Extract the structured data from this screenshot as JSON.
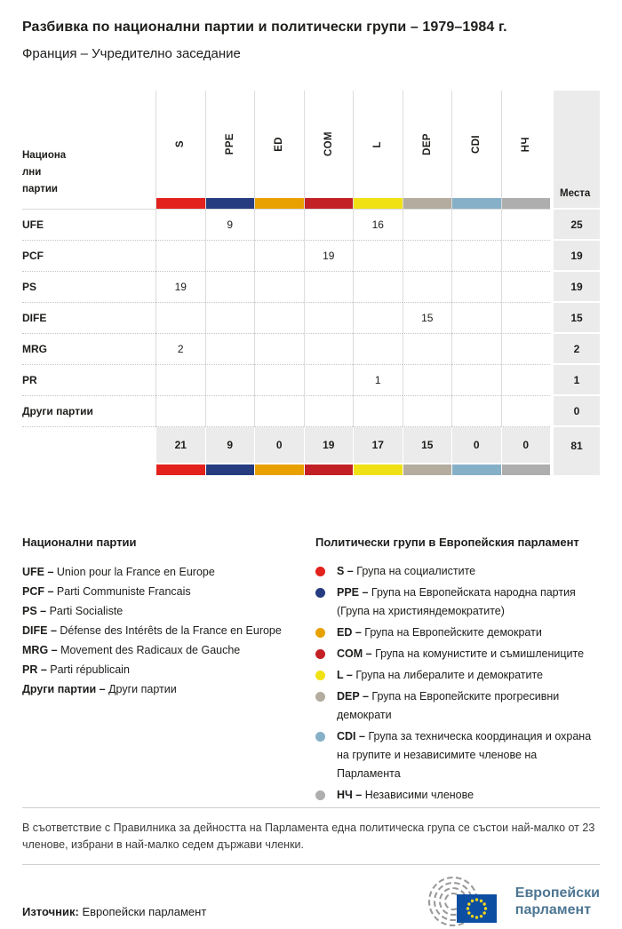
{
  "header": {
    "title": "Разбивка по национални партии и политически групи – 1979–1984 г.",
    "subtitle": "Франция – Учредително заседание"
  },
  "chart_data": {
    "type": "table",
    "row_header_lines": [
      "Национа",
      "лни",
      "партии"
    ],
    "seats_label": "Места",
    "groups": [
      {
        "code": "S",
        "color": "#e3211d"
      },
      {
        "code": "PPE",
        "color": "#253c80"
      },
      {
        "code": "ED",
        "color": "#e8a100"
      },
      {
        "code": "COM",
        "color": "#c32026"
      },
      {
        "code": "L",
        "color": "#f0e114"
      },
      {
        "code": "DEP",
        "color": "#b3ac9f"
      },
      {
        "code": "CDI",
        "color": "#86b0c8"
      },
      {
        "code": "НЧ",
        "color": "#aeaeae"
      }
    ],
    "rows": [
      {
        "party": "UFE",
        "values": [
          "",
          "9",
          "",
          "",
          "16",
          "",
          "",
          ""
        ],
        "seats": "25"
      },
      {
        "party": "PCF",
        "values": [
          "",
          "",
          "",
          "19",
          "",
          "",
          "",
          ""
        ],
        "seats": "19"
      },
      {
        "party": "PS",
        "values": [
          "19",
          "",
          "",
          "",
          "",
          "",
          "",
          ""
        ],
        "seats": "19"
      },
      {
        "party": "DIFE",
        "values": [
          "",
          "",
          "",
          "",
          "",
          "15",
          "",
          ""
        ],
        "seats": "15"
      },
      {
        "party": "MRG",
        "values": [
          "2",
          "",
          "",
          "",
          "",
          "",
          "",
          ""
        ],
        "seats": "2"
      },
      {
        "party": "PR",
        "values": [
          "",
          "",
          "",
          "",
          "1",
          "",
          "",
          ""
        ],
        "seats": "1"
      },
      {
        "party": "Други партии",
        "values": [
          "",
          "",
          "",
          "",
          "",
          "",
          "",
          ""
        ],
        "seats": "0"
      }
    ],
    "totals": {
      "values": [
        "21",
        "9",
        "0",
        "19",
        "17",
        "15",
        "0",
        "0"
      ],
      "seats": "81"
    }
  },
  "legend_parties": {
    "title": "Национални партии",
    "items": [
      {
        "abbr": "UFE –",
        "name": "Union pour la France en Europe"
      },
      {
        "abbr": "PCF –",
        "name": "Parti Communiste Francais"
      },
      {
        "abbr": "PS –",
        "name": "Parti Socialiste"
      },
      {
        "abbr": "DIFE –",
        "name": "Défense des Intérêts de la France en Europe"
      },
      {
        "abbr": "MRG –",
        "name": "Movement des Radicaux de Gauche"
      },
      {
        "abbr": "PR –",
        "name": "Parti républicain"
      },
      {
        "abbr": "Други партии –",
        "name": "Други партии"
      }
    ]
  },
  "legend_groups": {
    "title": "Политически групи в Европейския парламент",
    "items": [
      {
        "abbr": "S –",
        "color": "#e3211d",
        "name": "Група на социалистите"
      },
      {
        "abbr": "PPE –",
        "color": "#253c80",
        "name": "Група на Европейската народна партия (Група на християндемократите)"
      },
      {
        "abbr": "ED –",
        "color": "#e8a100",
        "name": "Група на Европейските демократи"
      },
      {
        "abbr": "COM –",
        "color": "#c32026",
        "name": "Група на комунистите и съмишлениците"
      },
      {
        "abbr": "L –",
        "color": "#f0e114",
        "name": "Група на либералите и демократите"
      },
      {
        "abbr": "DEP –",
        "color": "#b3ac9f",
        "name": "Група на Европейските прогресивни демократи"
      },
      {
        "abbr": "CDI –",
        "color": "#86b0c8",
        "name": "Група за техническа координация и охрана на групите и независимите членове на Парламента"
      },
      {
        "abbr": "НЧ –",
        "color": "#aeaeae",
        "name": "Независими членове"
      }
    ]
  },
  "footnote": "В съответствие с Правилника за дейността на Парламента една политическа група се състои най-малко от 23 членове, избрани в най-малко седем държави членки.",
  "source": {
    "label": "Източник:",
    "value": "Европейски парламент"
  },
  "logo": {
    "line1": "Европейски",
    "line2": "парламент",
    "text_color": "#4d7693",
    "flag_color": "#0b4ea2",
    "star_color": "#ffd617",
    "arc_color": "#9a9a9a"
  }
}
